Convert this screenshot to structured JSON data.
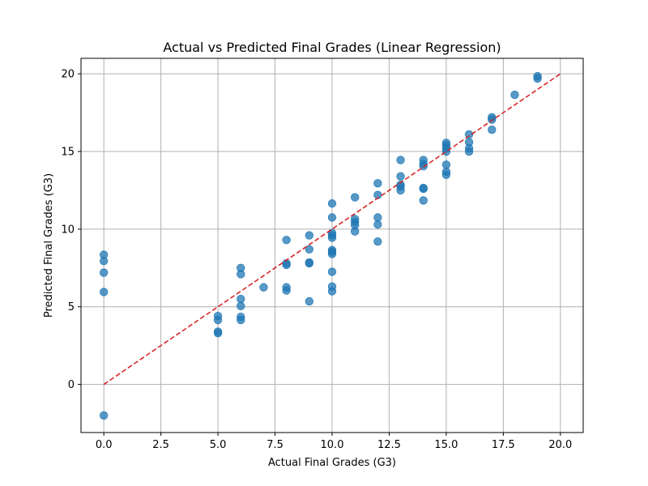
{
  "chart_data": {
    "type": "scatter",
    "title": "Actual vs Predicted Final Grades (Linear Regression)",
    "xlabel": "Actual Final Grades (G3)",
    "ylabel": "Predicted Final Grades (G3)",
    "xlim": [
      -1,
      21
    ],
    "ylim": [
      -3.1,
      21
    ],
    "xticks": [
      0,
      2.5,
      5,
      7.5,
      10,
      12.5,
      15,
      17.5,
      20
    ],
    "xtick_labels": [
      "0.0",
      "2.5",
      "5.0",
      "7.5",
      "10.0",
      "12.5",
      "15.0",
      "17.5",
      "20.0"
    ],
    "yticks": [
      0,
      5,
      10,
      15,
      20
    ],
    "ytick_labels": [
      "0",
      "5",
      "10",
      "15",
      "20"
    ],
    "grid": true,
    "point_color": "#1f77b4",
    "reference_line": {
      "from": [
        0,
        0
      ],
      "to": [
        20,
        20
      ],
      "color": "#d62728",
      "style": "dashed"
    },
    "series": [
      {
        "points": [
          [
            0,
            8.35
          ],
          [
            0,
            7.95
          ],
          [
            0,
            7.2
          ],
          [
            0,
            5.95
          ],
          [
            0,
            -2.0
          ],
          [
            5,
            4.4
          ],
          [
            5,
            4.15
          ],
          [
            5,
            3.4
          ],
          [
            5,
            3.3
          ],
          [
            6,
            7.5
          ],
          [
            6,
            7.1
          ],
          [
            6,
            5.5
          ],
          [
            6,
            5.05
          ],
          [
            6,
            4.35
          ],
          [
            6,
            4.15
          ],
          [
            7,
            6.25
          ],
          [
            8,
            9.3
          ],
          [
            8,
            7.8
          ],
          [
            8,
            7.7
          ],
          [
            8,
            6.25
          ],
          [
            8,
            6.05
          ],
          [
            9,
            9.6
          ],
          [
            9,
            8.7
          ],
          [
            9,
            7.85
          ],
          [
            9,
            7.8
          ],
          [
            9,
            5.35
          ],
          [
            10,
            11.65
          ],
          [
            10,
            10.75
          ],
          [
            10,
            9.75
          ],
          [
            10,
            9.6
          ],
          [
            10,
            9.45
          ],
          [
            10,
            8.65
          ],
          [
            10,
            8.55
          ],
          [
            10,
            8.4
          ],
          [
            10,
            7.25
          ],
          [
            10,
            6.3
          ],
          [
            10,
            6.0
          ],
          [
            11,
            12.05
          ],
          [
            11,
            10.65
          ],
          [
            11,
            10.45
          ],
          [
            11,
            10.25
          ],
          [
            11,
            9.85
          ],
          [
            12,
            12.95
          ],
          [
            12,
            12.2
          ],
          [
            12,
            10.75
          ],
          [
            12,
            10.3
          ],
          [
            12,
            9.2
          ],
          [
            13,
            14.45
          ],
          [
            13,
            13.4
          ],
          [
            13,
            12.85
          ],
          [
            13,
            12.75
          ],
          [
            13,
            12.5
          ],
          [
            14,
            14.45
          ],
          [
            14,
            14.2
          ],
          [
            14,
            14.05
          ],
          [
            14,
            12.65
          ],
          [
            14,
            12.6
          ],
          [
            14,
            11.85
          ],
          [
            15,
            15.55
          ],
          [
            15,
            15.4
          ],
          [
            15,
            15.2
          ],
          [
            15,
            15.0
          ],
          [
            15,
            14.15
          ],
          [
            15,
            13.7
          ],
          [
            15,
            13.5
          ],
          [
            16,
            16.1
          ],
          [
            16,
            15.6
          ],
          [
            16,
            15.2
          ],
          [
            16,
            15.0
          ],
          [
            17,
            17.2
          ],
          [
            17,
            17.05
          ],
          [
            17,
            16.4
          ],
          [
            18,
            18.65
          ],
          [
            19,
            19.85
          ],
          [
            19,
            19.7
          ]
        ]
      }
    ]
  }
}
